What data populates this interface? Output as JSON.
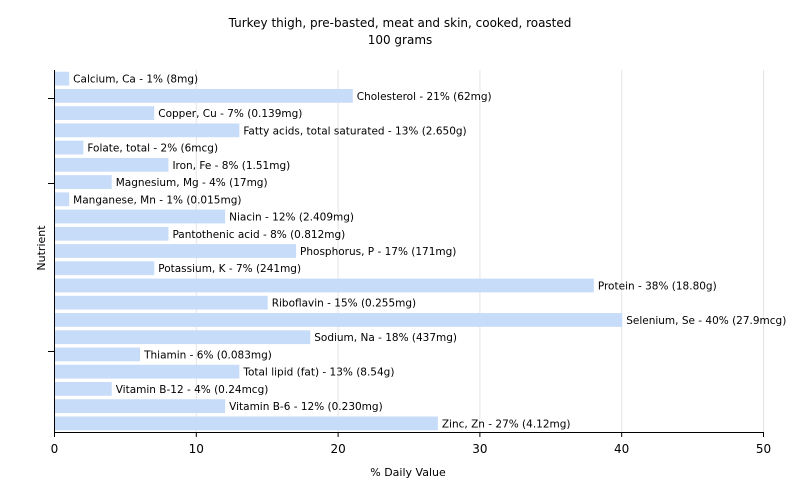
{
  "chart_data": {
    "type": "bar",
    "orientation": "horizontal",
    "title": "Turkey thigh, pre-basted, meat and skin, cooked, roasted",
    "subtitle": "100 grams",
    "xlabel": "% Daily Value",
    "ylabel": "Nutrient",
    "xlim": [
      0,
      50
    ],
    "xticks": [
      0,
      10,
      20,
      30,
      40,
      50
    ],
    "grid": true,
    "legend": "none",
    "bar_color": "#c7dcf8",
    "categories": [
      "Calcium, Ca",
      "Cholesterol",
      "Copper, Cu",
      "Fatty acids, total saturated",
      "Folate, total",
      "Iron, Fe",
      "Magnesium, Mg",
      "Manganese, Mn",
      "Niacin",
      "Pantothenic acid",
      "Phosphorus, P",
      "Potassium, K",
      "Protein",
      "Riboflavin",
      "Selenium, Se",
      "Sodium, Na",
      "Thiamin",
      "Total lipid (fat)",
      "Vitamin B-12",
      "Vitamin B-6",
      "Zinc, Zn"
    ],
    "values": [
      1,
      21,
      7,
      13,
      2,
      8,
      4,
      1,
      12,
      8,
      17,
      7,
      38,
      15,
      40,
      18,
      6,
      13,
      4,
      12,
      27
    ],
    "labels": [
      "Calcium, Ca - 1% (8mg)",
      "Cholesterol - 21% (62mg)",
      "Copper, Cu - 7% (0.139mg)",
      "Fatty acids, total saturated - 13% (2.650g)",
      "Folate, total - 2% (6mcg)",
      "Iron, Fe - 8% (1.51mg)",
      "Magnesium, Mg - 4% (17mg)",
      "Manganese, Mn - 1% (0.015mg)",
      "Niacin - 12% (2.409mg)",
      "Pantothenic acid - 8% (0.812mg)",
      "Phosphorus, P - 17% (171mg)",
      "Potassium, K - 7% (241mg)",
      "Protein - 38% (18.80g)",
      "Riboflavin - 15% (0.255mg)",
      "Selenium, Se - 40% (27.9mcg)",
      "Sodium, Na - 18% (437mg)",
      "Thiamin - 6% (0.083mg)",
      "Total lipid (fat) - 13% (8.54g)",
      "Vitamin B-12 - 4% (0.24mcg)",
      "Vitamin B-6 - 12% (0.230mg)",
      "Zinc, Zn - 27% (4.12mg)"
    ]
  }
}
